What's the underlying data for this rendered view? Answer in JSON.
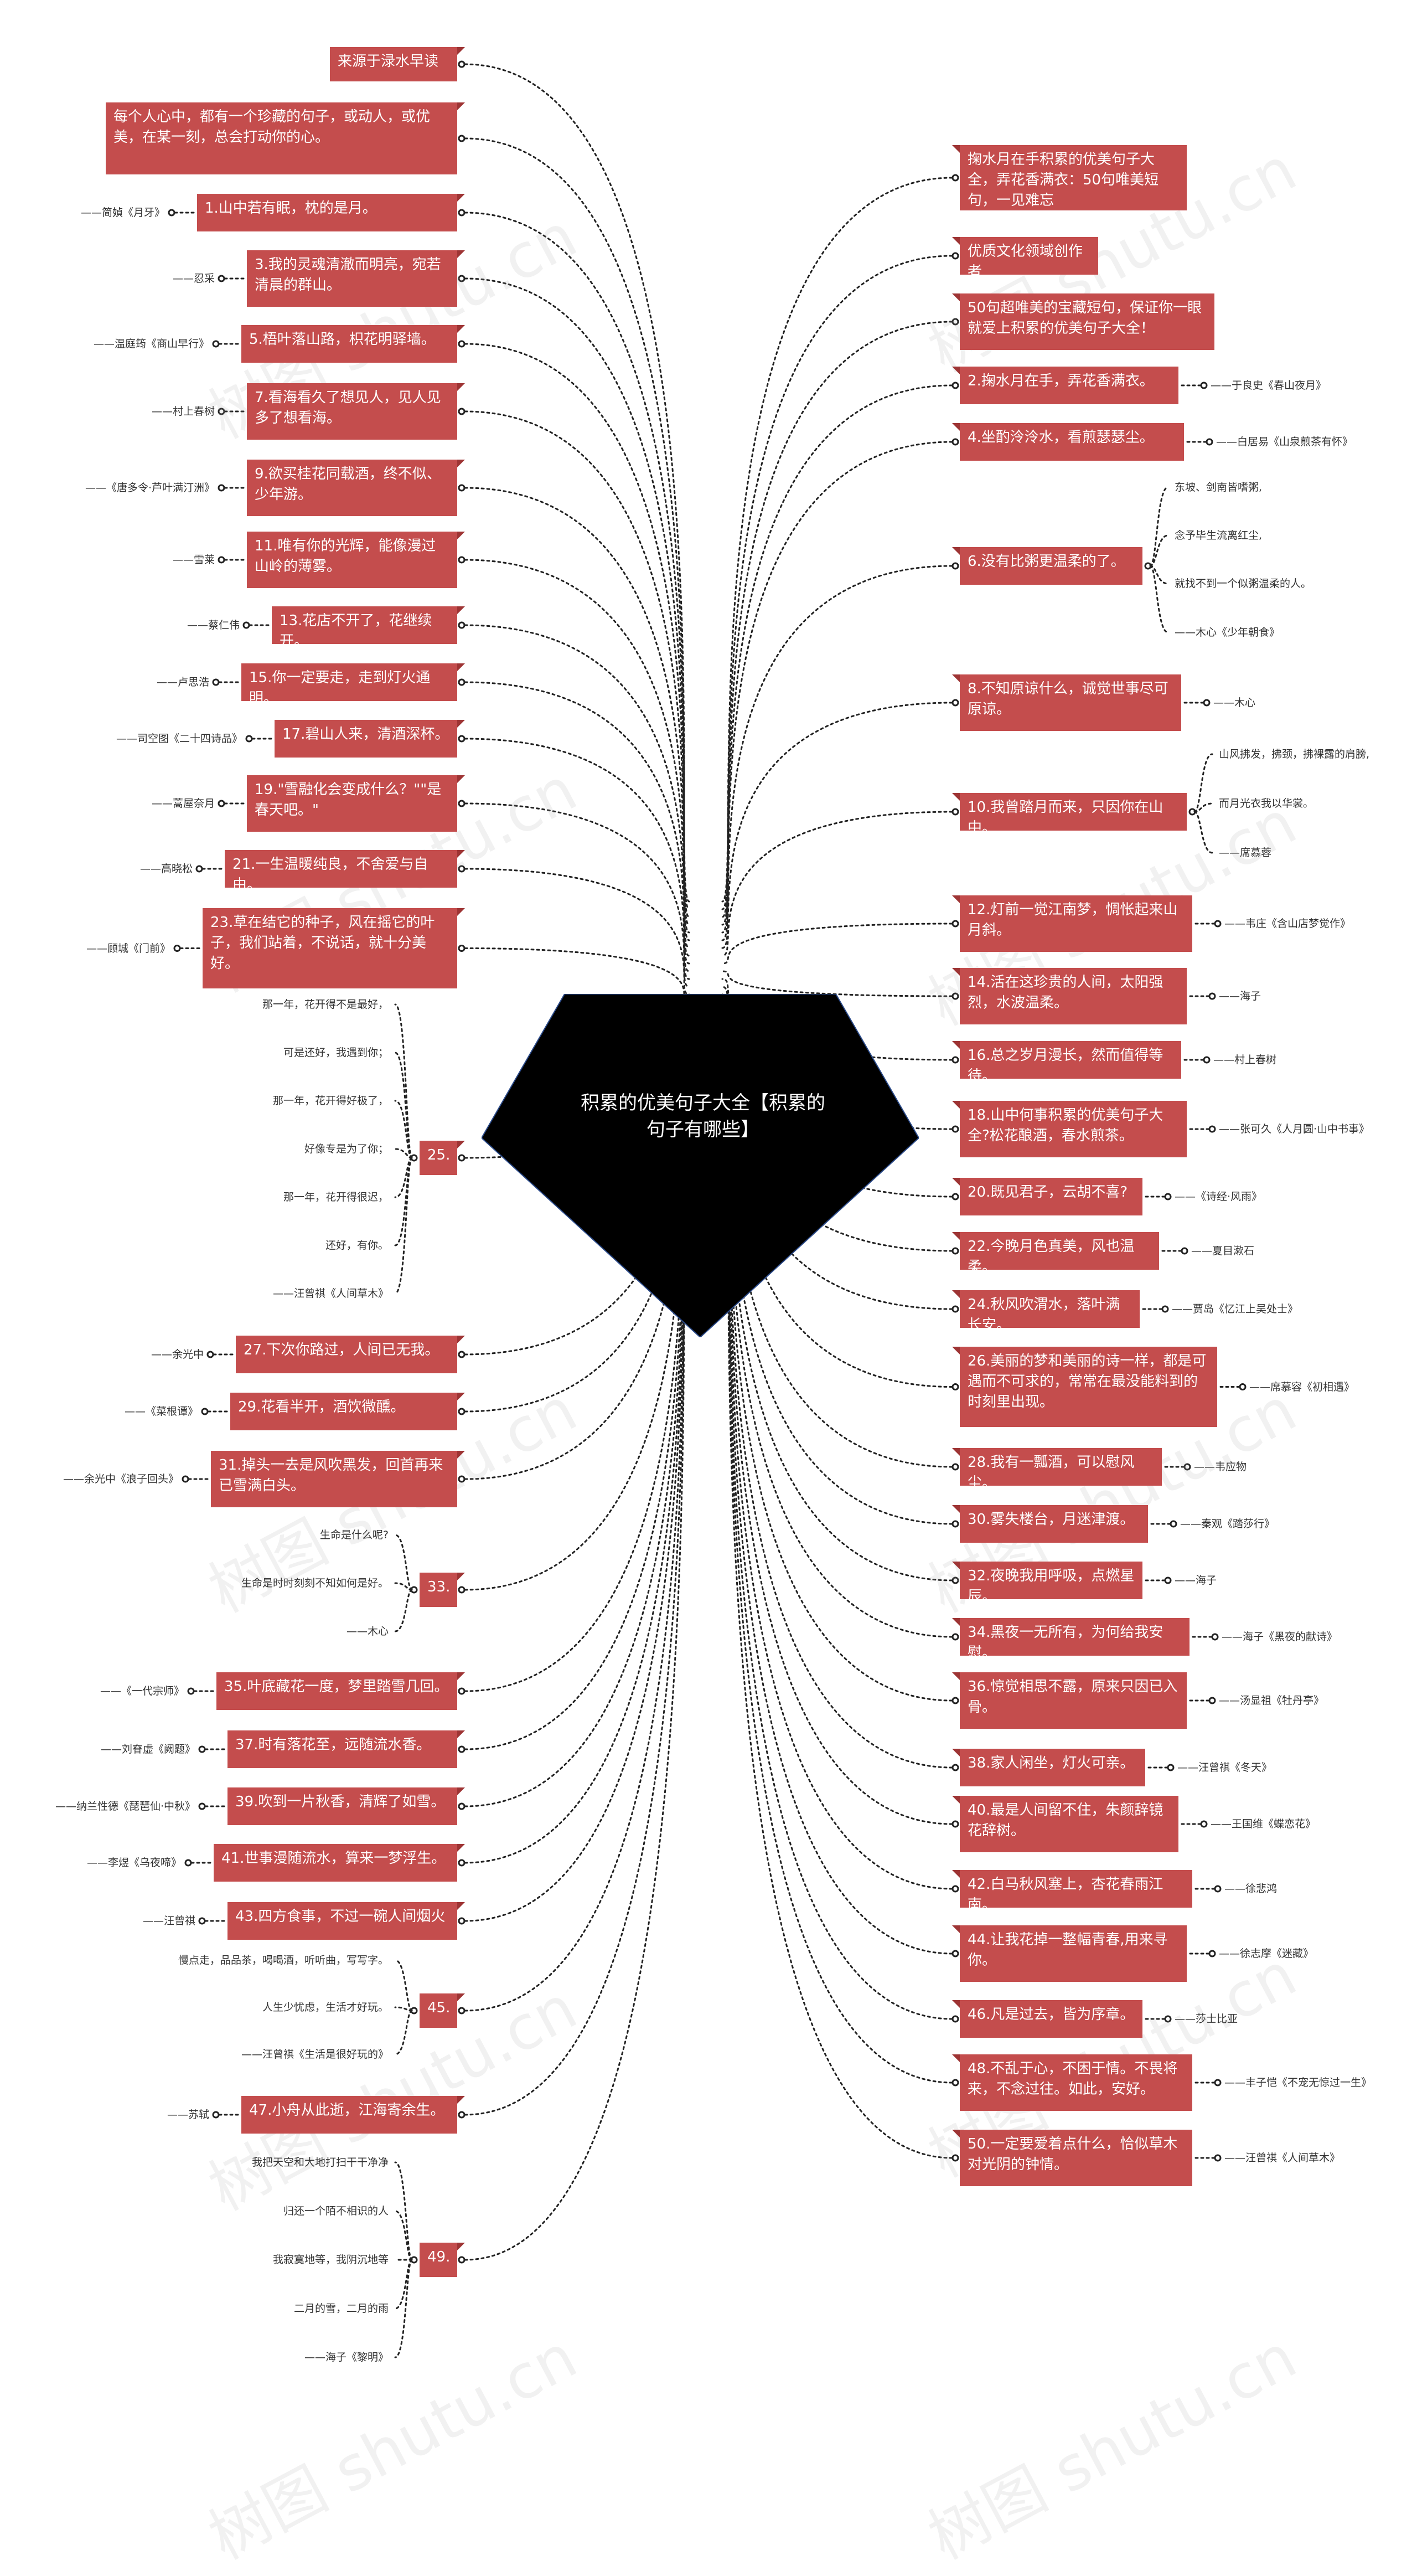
{
  "title": "积累的优美句子大全【积累的句子有哪些】",
  "watermark": "树图 shutu.cn",
  "colors": {
    "node": "#c44d4d",
    "center": "#000000",
    "line": "#222222"
  },
  "left": [
    {
      "text": "来源于渌水早读"
    },
    {
      "text": "每个人心中，都有一个珍藏的句子，或动人，或优美，在某一刻，总会打动你的心。"
    },
    {
      "text": "1.山中若有眠，枕的是月。",
      "leaves": [
        "——简媜《月牙》"
      ]
    },
    {
      "text": "3.我的灵魂清澈而明亮，宛若清晨的群山。",
      "leaves": [
        "——忍采"
      ]
    },
    {
      "text": "5.梧叶落山路，枳花明驿墙。",
      "leaves": [
        "——温庭筠《商山早行》"
      ]
    },
    {
      "text": "7.看海看久了想见人，见人见多了想看海。",
      "leaves": [
        "——村上春树"
      ]
    },
    {
      "text": "9.欲买桂花同载酒，终不似、少年游。",
      "leaves": [
        "——《唐多令·芦叶满汀洲》"
      ]
    },
    {
      "text": "11.唯有你的光辉，能像漫过山岭的薄雾。",
      "leaves": [
        "——雪莱"
      ]
    },
    {
      "text": "13.花店不开了，花继续开。",
      "leaves": [
        "——蔡仁伟"
      ]
    },
    {
      "text": "15.你一定要走，走到灯火通明。",
      "leaves": [
        "——卢思浩"
      ]
    },
    {
      "text": "17.碧山人来，清酒深杯。",
      "leaves": [
        "——司空图《二十四诗品》"
      ]
    },
    {
      "text": "19.\"雪融化会变成什么？\"\"是春天吧。\"",
      "leaves": [
        "——蒿屋奈月"
      ]
    },
    {
      "text": "21.一生温暖纯良，不舍爱与自由。",
      "leaves": [
        "——高晓松"
      ]
    },
    {
      "text": "23.草在结它的种子，风在摇它的叶子，我们站着，不说话，就十分美好。",
      "leaves": [
        "——顾城《门前》"
      ]
    },
    {
      "text": "25.",
      "leaves": [
        "那一年，花开得不是最好，",
        "可是还好，我遇到你；",
        "那一年，花开得好极了，",
        "好像专是为了你；",
        "那一年，花开得很迟，",
        "还好，有你。",
        "——汪曾祺《人间草木》"
      ]
    },
    {
      "text": "27.下次你路过，人间已无我。",
      "leaves": [
        "——余光中"
      ]
    },
    {
      "text": "29.花看半开，酒饮微醺。",
      "leaves": [
        "——《菜根谭》"
      ]
    },
    {
      "text": "31.掉头一去是风吹黑发，回首再来已雪满白头。",
      "leaves": [
        "——余光中《浪子回头》"
      ]
    },
    {
      "text": "33.",
      "leaves": [
        "生命是什么呢?",
        "生命是时时刻刻不知如何是好。",
        "——木心"
      ]
    },
    {
      "text": "35.叶底藏花一度，梦里踏雪几回。",
      "leaves": [
        "——《一代宗师》"
      ]
    },
    {
      "text": "37.时有落花至，远随流水香。",
      "leaves": [
        "——刘眘虚《阙题》"
      ]
    },
    {
      "text": "39.吹到一片秋香，清辉了如雪。",
      "leaves": [
        "——纳兰性德《琵琶仙·中秋》"
      ]
    },
    {
      "text": "41.世事漫随流水，算来一梦浮生。",
      "leaves": [
        "——李煜《乌夜啼》"
      ]
    },
    {
      "text": "43.四方食事，不过一碗人间烟火",
      "leaves": [
        "——汪曾祺"
      ]
    },
    {
      "text": "45.",
      "leaves": [
        "慢点走，品品茶，喝喝酒，听听曲，写写字。",
        "人生少忧虑，生活才好玩。",
        "——汪曾祺《生活是很好玩的》"
      ]
    },
    {
      "text": "47.小舟从此逝，江海寄余生。",
      "leaves": [
        "——苏轼"
      ]
    },
    {
      "text": "49.",
      "leaves": [
        "我把天空和大地打扫干干净净",
        "归还一个陌不相识的人",
        "我寂寞地等，我阴沉地等",
        "二月的雪，二月的雨",
        "——海子《黎明》"
      ]
    }
  ],
  "right": [
    {
      "text": "掬水月在手积累的优美句子大全，弄花香满衣：50句唯美短句，一见难忘"
    },
    {
      "text": "优质文化领域创作者"
    },
    {
      "text": "50句超唯美的宝藏短句，保证你一眼就爱上积累的优美句子大全！"
    },
    {
      "text": "2.掬水月在手，弄花香满衣。",
      "leaves": [
        "——于良史《春山夜月》"
      ]
    },
    {
      "text": "4.坐酌泠泠水，看煎瑟瑟尘。",
      "leaves": [
        "——白居易《山泉煎茶有怀》"
      ]
    },
    {
      "text": "6.没有比粥更温柔的了。",
      "leaves": [
        "东坡、剑南皆嗜粥,",
        "念予毕生流离红尘,",
        "就找不到一个似粥温柔的人。",
        "——木心《少年朝食》"
      ]
    },
    {
      "text": "8.不知原谅什么，诚觉世事尽可原谅。",
      "leaves": [
        "——木心"
      ]
    },
    {
      "text": "10.我曾踏月而来，只因你在山中。",
      "leaves": [
        "山风拂发，拂颈，拂裸露的肩膀,",
        "而月光衣我以华裳。",
        "——席慕蓉"
      ]
    },
    {
      "text": "12.灯前一觉江南梦，惆怅起来山月斜。",
      "leaves": [
        "——韦庄《含山店梦觉作》"
      ]
    },
    {
      "text": "14.活在这珍贵的人间，太阳强烈，水波温柔。",
      "leaves": [
        "——海子"
      ]
    },
    {
      "text": "16.总之岁月漫长，然而值得等待。",
      "leaves": [
        "——村上春树"
      ]
    },
    {
      "text": "18.山中何事积累的优美句子大全?松花酿酒，春水煎茶。",
      "leaves": [
        "——张可久《人月圆·山中书事》"
      ]
    },
    {
      "text": "20.既见君子，云胡不喜?",
      "leaves": [
        "——《诗经·风雨》"
      ]
    },
    {
      "text": "22.今晚月色真美，风也温柔。",
      "leaves": [
        "——夏目漱石"
      ]
    },
    {
      "text": "24.秋风吹渭水，落叶满长安。",
      "leaves": [
        "——贾岛《忆江上吴处士》"
      ]
    },
    {
      "text": "26.美丽的梦和美丽的诗一样，都是可遇而不可求的，常常在最没能料到的时刻里出现。",
      "leaves": [
        "——席慕容《初相遇》"
      ]
    },
    {
      "text": "28.我有一瓢酒，可以慰风尘。",
      "leaves": [
        "——韦应物"
      ]
    },
    {
      "text": "30.雾失楼台，月迷津渡。",
      "leaves": [
        "——秦观《踏莎行》"
      ]
    },
    {
      "text": "32.夜晚我用呼吸，点燃星辰。",
      "leaves": [
        "——海子"
      ]
    },
    {
      "text": "34.黑夜一无所有，为何给我安慰。",
      "leaves": [
        "——海子《黑夜的献诗》"
      ]
    },
    {
      "text": "36.惊觉相思不露，原来只因已入骨。",
      "leaves": [
        "——汤显祖《牡丹亭》"
      ]
    },
    {
      "text": "38.家人闲坐，灯火可亲。",
      "leaves": [
        "——汪曾祺《冬天》"
      ]
    },
    {
      "text": "40.最是人间留不住，朱颜辞镜花辞树。",
      "leaves": [
        "——王国维《蝶恋花》"
      ]
    },
    {
      "text": "42.白马秋风塞上，杏花春雨江南。",
      "leaves": [
        "——徐悲鸿"
      ]
    },
    {
      "text": "44.让我花掉一整幅青春,用来寻你。",
      "leaves": [
        "——徐志摩《迷藏》"
      ]
    },
    {
      "text": "46.凡是过去，皆为序章。",
      "leaves": [
        "——莎士比亚"
      ]
    },
    {
      "text": "48.不乱于心，不困于情。不畏将来，不念过往。如此，安好。",
      "leaves": [
        "——丰子恺《不宠无惊过一生》"
      ]
    },
    {
      "text": "50.一定要爱着点什么，恰似草木对光阴的钟情。",
      "leaves": [
        "——汪曾祺《人间草木》"
      ]
    }
  ]
}
